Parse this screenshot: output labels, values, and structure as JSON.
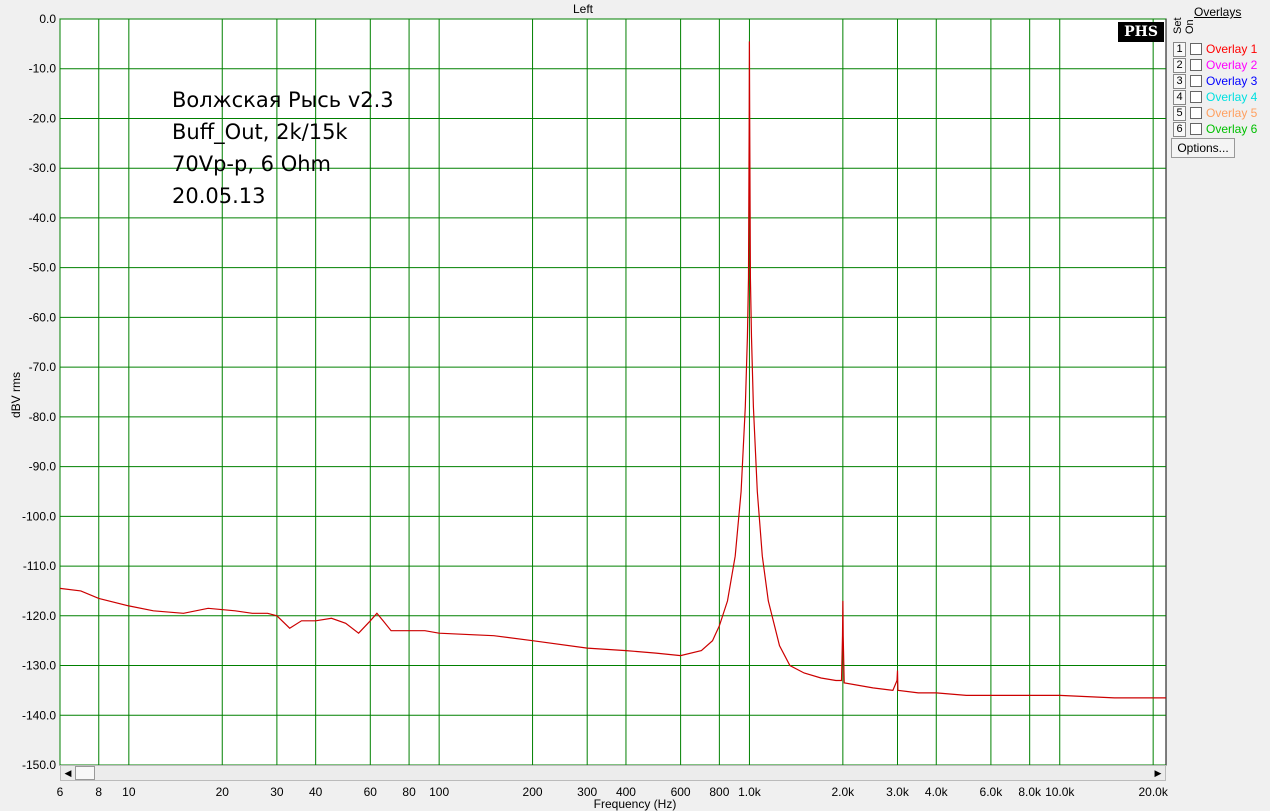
{
  "chart_data": {
    "type": "line",
    "title": "Left",
    "xlabel": "Frequency (Hz)",
    "ylabel": "dBV rms",
    "x_scale": "log",
    "xlim": [
      6,
      22000
    ],
    "ylim": [
      -150,
      0
    ],
    "grid": true,
    "x_ticks": [
      {
        "v": 6,
        "label": "6"
      },
      {
        "v": 8,
        "label": "8"
      },
      {
        "v": 10,
        "label": "10"
      },
      {
        "v": 20,
        "label": "20"
      },
      {
        "v": 30,
        "label": "30"
      },
      {
        "v": 40,
        "label": "40"
      },
      {
        "v": 60,
        "label": "60"
      },
      {
        "v": 80,
        "label": "80"
      },
      {
        "v": 100,
        "label": "100"
      },
      {
        "v": 200,
        "label": "200"
      },
      {
        "v": 300,
        "label": "300"
      },
      {
        "v": 400,
        "label": "400"
      },
      {
        "v": 600,
        "label": "600"
      },
      {
        "v": 800,
        "label": "800"
      },
      {
        "v": 1000,
        "label": "1.0k"
      },
      {
        "v": 2000,
        "label": "2.0k"
      },
      {
        "v": 3000,
        "label": "3.0k"
      },
      {
        "v": 4000,
        "label": "4.0k"
      },
      {
        "v": 6000,
        "label": "6.0k"
      },
      {
        "v": 8000,
        "label": "8.0k"
      },
      {
        "v": 10000,
        "label": "10.0k"
      },
      {
        "v": 20000,
        "label": "20.0k"
      }
    ],
    "y_ticks": [
      {
        "v": 0,
        "label": "0.0"
      },
      {
        "v": -10,
        "label": "-10.0"
      },
      {
        "v": -20,
        "label": "-20.0"
      },
      {
        "v": -30,
        "label": "-30.0"
      },
      {
        "v": -40,
        "label": "-40.0"
      },
      {
        "v": -50,
        "label": "-50.0"
      },
      {
        "v": -60,
        "label": "-60.0"
      },
      {
        "v": -70,
        "label": "-70.0"
      },
      {
        "v": -80,
        "label": "-80.0"
      },
      {
        "v": -90,
        "label": "-90.0"
      },
      {
        "v": -100,
        "label": "-100.0"
      },
      {
        "v": -110,
        "label": "-110.0"
      },
      {
        "v": -120,
        "label": "-120.0"
      },
      {
        "v": -130,
        "label": "-130.0"
      },
      {
        "v": -140,
        "label": "-140.0"
      },
      {
        "v": -150,
        "label": "-150.0"
      }
    ],
    "series": [
      {
        "color": "#cc0000",
        "points": [
          [
            6,
            -114.5
          ],
          [
            7,
            -115
          ],
          [
            8,
            -116.5
          ],
          [
            10,
            -118
          ],
          [
            12,
            -119
          ],
          [
            15,
            -119.5
          ],
          [
            18,
            -118.5
          ],
          [
            22,
            -119
          ],
          [
            25,
            -119.5
          ],
          [
            28,
            -119.5
          ],
          [
            30,
            -120
          ],
          [
            33,
            -122.5
          ],
          [
            36,
            -121
          ],
          [
            40,
            -121
          ],
          [
            45,
            -120.5
          ],
          [
            50,
            -121.5
          ],
          [
            55,
            -123.5
          ],
          [
            60,
            -121
          ],
          [
            63,
            -119.5
          ],
          [
            66,
            -121
          ],
          [
            70,
            -123
          ],
          [
            80,
            -123
          ],
          [
            90,
            -123
          ],
          [
            100,
            -123.5
          ],
          [
            150,
            -124
          ],
          [
            200,
            -125
          ],
          [
            300,
            -126.5
          ],
          [
            400,
            -127
          ],
          [
            500,
            -127.5
          ],
          [
            600,
            -128
          ],
          [
            700,
            -127
          ],
          [
            760,
            -125
          ],
          [
            800,
            -122
          ],
          [
            850,
            -117
          ],
          [
            900,
            -108
          ],
          [
            940,
            -95
          ],
          [
            970,
            -78
          ],
          [
            985,
            -64
          ],
          [
            993,
            -52
          ],
          [
            998,
            -20
          ],
          [
            1000,
            -4.5
          ],
          [
            1002,
            -20
          ],
          [
            1007,
            -52
          ],
          [
            1015,
            -64
          ],
          [
            1030,
            -78
          ],
          [
            1060,
            -95
          ],
          [
            1100,
            -108
          ],
          [
            1150,
            -117
          ],
          [
            1250,
            -126
          ],
          [
            1350,
            -130
          ],
          [
            1500,
            -131.5
          ],
          [
            1700,
            -132.5
          ],
          [
            1900,
            -133
          ],
          [
            1980,
            -133
          ],
          [
            1995,
            -124
          ],
          [
            2000,
            -117
          ],
          [
            2005,
            -124
          ],
          [
            2020,
            -133.5
          ],
          [
            2500,
            -134.5
          ],
          [
            2900,
            -135
          ],
          [
            2990,
            -133
          ],
          [
            3000,
            -131
          ],
          [
            3010,
            -135
          ],
          [
            3500,
            -135.5
          ],
          [
            4000,
            -135.5
          ],
          [
            5000,
            -136
          ],
          [
            6000,
            -136
          ],
          [
            8000,
            -136
          ],
          [
            10000,
            -136
          ],
          [
            15000,
            -136.5
          ],
          [
            22000,
            -136.5
          ]
        ]
      }
    ],
    "annotation_lines": [
      "Волжская Рысь v2.3",
      "Buff_Out, 2k/15k",
      "70Vp-p, 6 Ohm",
      "20.05.13"
    ],
    "logo_text": "PHS"
  },
  "overlays": {
    "title": "Overlays",
    "set_label": "Set",
    "on_label": "On",
    "items": [
      {
        "num": "1",
        "label": "Overlay 1",
        "color": "#ff0000"
      },
      {
        "num": "2",
        "label": "Overlay 2",
        "color": "#ff00ff"
      },
      {
        "num": "3",
        "label": "Overlay 3",
        "color": "#0000ff"
      },
      {
        "num": "4",
        "label": "Overlay 4",
        "color": "#00ffff"
      },
      {
        "num": "5",
        "label": "Overlay 5",
        "color": "#ffa060"
      },
      {
        "num": "6",
        "label": "Overlay 6",
        "color": "#00c000"
      }
    ],
    "options_label": "Options..."
  },
  "colors": {
    "grid": "#008000",
    "plot_bg": "#ffffff",
    "trace": "#cc0000"
  }
}
